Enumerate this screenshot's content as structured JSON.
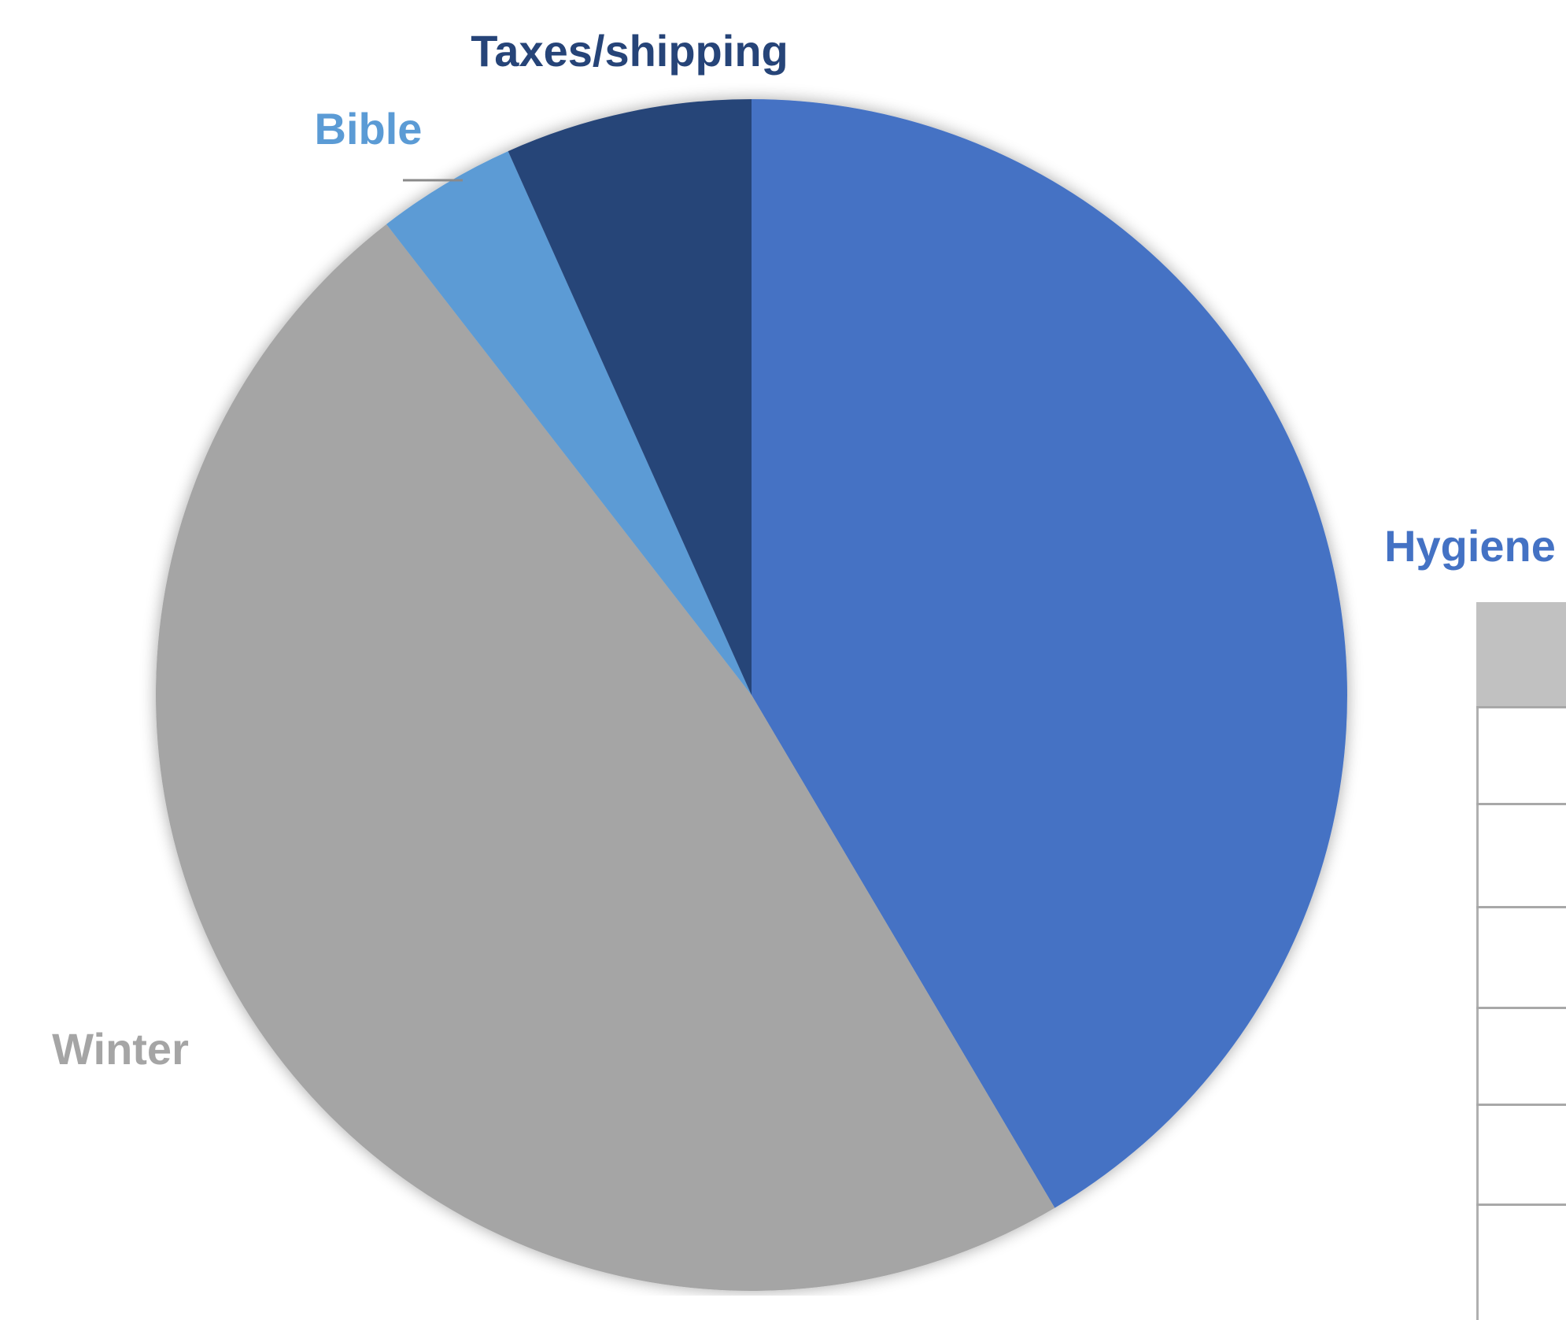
{
  "chart_data": {
    "type": "pie",
    "title": "",
    "slices": [
      {
        "label": "Hygiene",
        "value": 41.5,
        "color": "#4472C4"
      },
      {
        "label": "Winter",
        "value": 48.0,
        "color": "#A5A5A5"
      },
      {
        "label": "Bible",
        "value": 3.8,
        "color": "#5B9BD5"
      },
      {
        "label": "Taxes/shipping",
        "value": 6.7,
        "color": "#264478"
      }
    ],
    "start_angle_deg": 0,
    "direction": "clockwise",
    "label_position": "outside"
  },
  "table_fragment": {
    "header_color": "#C1C1C1",
    "visible_rows": 6
  }
}
